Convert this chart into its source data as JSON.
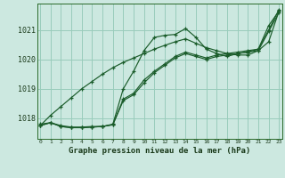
{
  "xlabel": "Graphe pression niveau de la mer (hPa)",
  "background_color": "#cce8e0",
  "grid_color": "#99ccbb",
  "line_color": "#1a5c2a",
  "x_ticks": [
    0,
    1,
    2,
    3,
    4,
    5,
    6,
    7,
    8,
    9,
    10,
    11,
    12,
    13,
    14,
    15,
    16,
    17,
    18,
    19,
    20,
    21,
    22,
    23
  ],
  "y_ticks": [
    1018,
    1019,
    1020,
    1021
  ],
  "ylim": [
    1017.3,
    1021.9
  ],
  "xlim": [
    -0.3,
    23.3
  ],
  "lines": [
    [
      1017.8,
      1017.85,
      1017.75,
      1017.7,
      1017.7,
      1017.72,
      1017.72,
      1017.8,
      1019.0,
      1019.6,
      1020.3,
      1020.75,
      1020.82,
      1020.85,
      1021.05,
      1020.75,
      1020.35,
      1020.2,
      1020.1,
      1020.2,
      1020.25,
      1020.35,
      1021.15,
      1021.65
    ],
    [
      1017.75,
      1017.85,
      1017.72,
      1017.68,
      1017.68,
      1017.7,
      1017.72,
      1017.78,
      1018.6,
      1018.8,
      1019.2,
      1019.55,
      1019.8,
      1020.05,
      1020.2,
      1020.1,
      1020.0,
      1020.1,
      1020.15,
      1020.2,
      1020.25,
      1020.3,
      1020.95,
      1021.6
    ],
    [
      1017.75,
      1017.85,
      1017.72,
      1017.68,
      1017.68,
      1017.7,
      1017.72,
      1017.78,
      1018.65,
      1018.85,
      1019.3,
      1019.6,
      1019.85,
      1020.1,
      1020.25,
      1020.15,
      1020.05,
      1020.15,
      1020.2,
      1020.25,
      1020.3,
      1020.35,
      1021.0,
      1021.7
    ],
    [
      1017.75,
      1018.1,
      1018.4,
      1018.7,
      1019.0,
      1019.25,
      1019.5,
      1019.72,
      1019.9,
      1020.05,
      1020.2,
      1020.35,
      1020.48,
      1020.6,
      1020.7,
      1020.55,
      1020.4,
      1020.3,
      1020.2,
      1020.15,
      1020.15,
      1020.3,
      1020.6,
      1021.65
    ]
  ]
}
